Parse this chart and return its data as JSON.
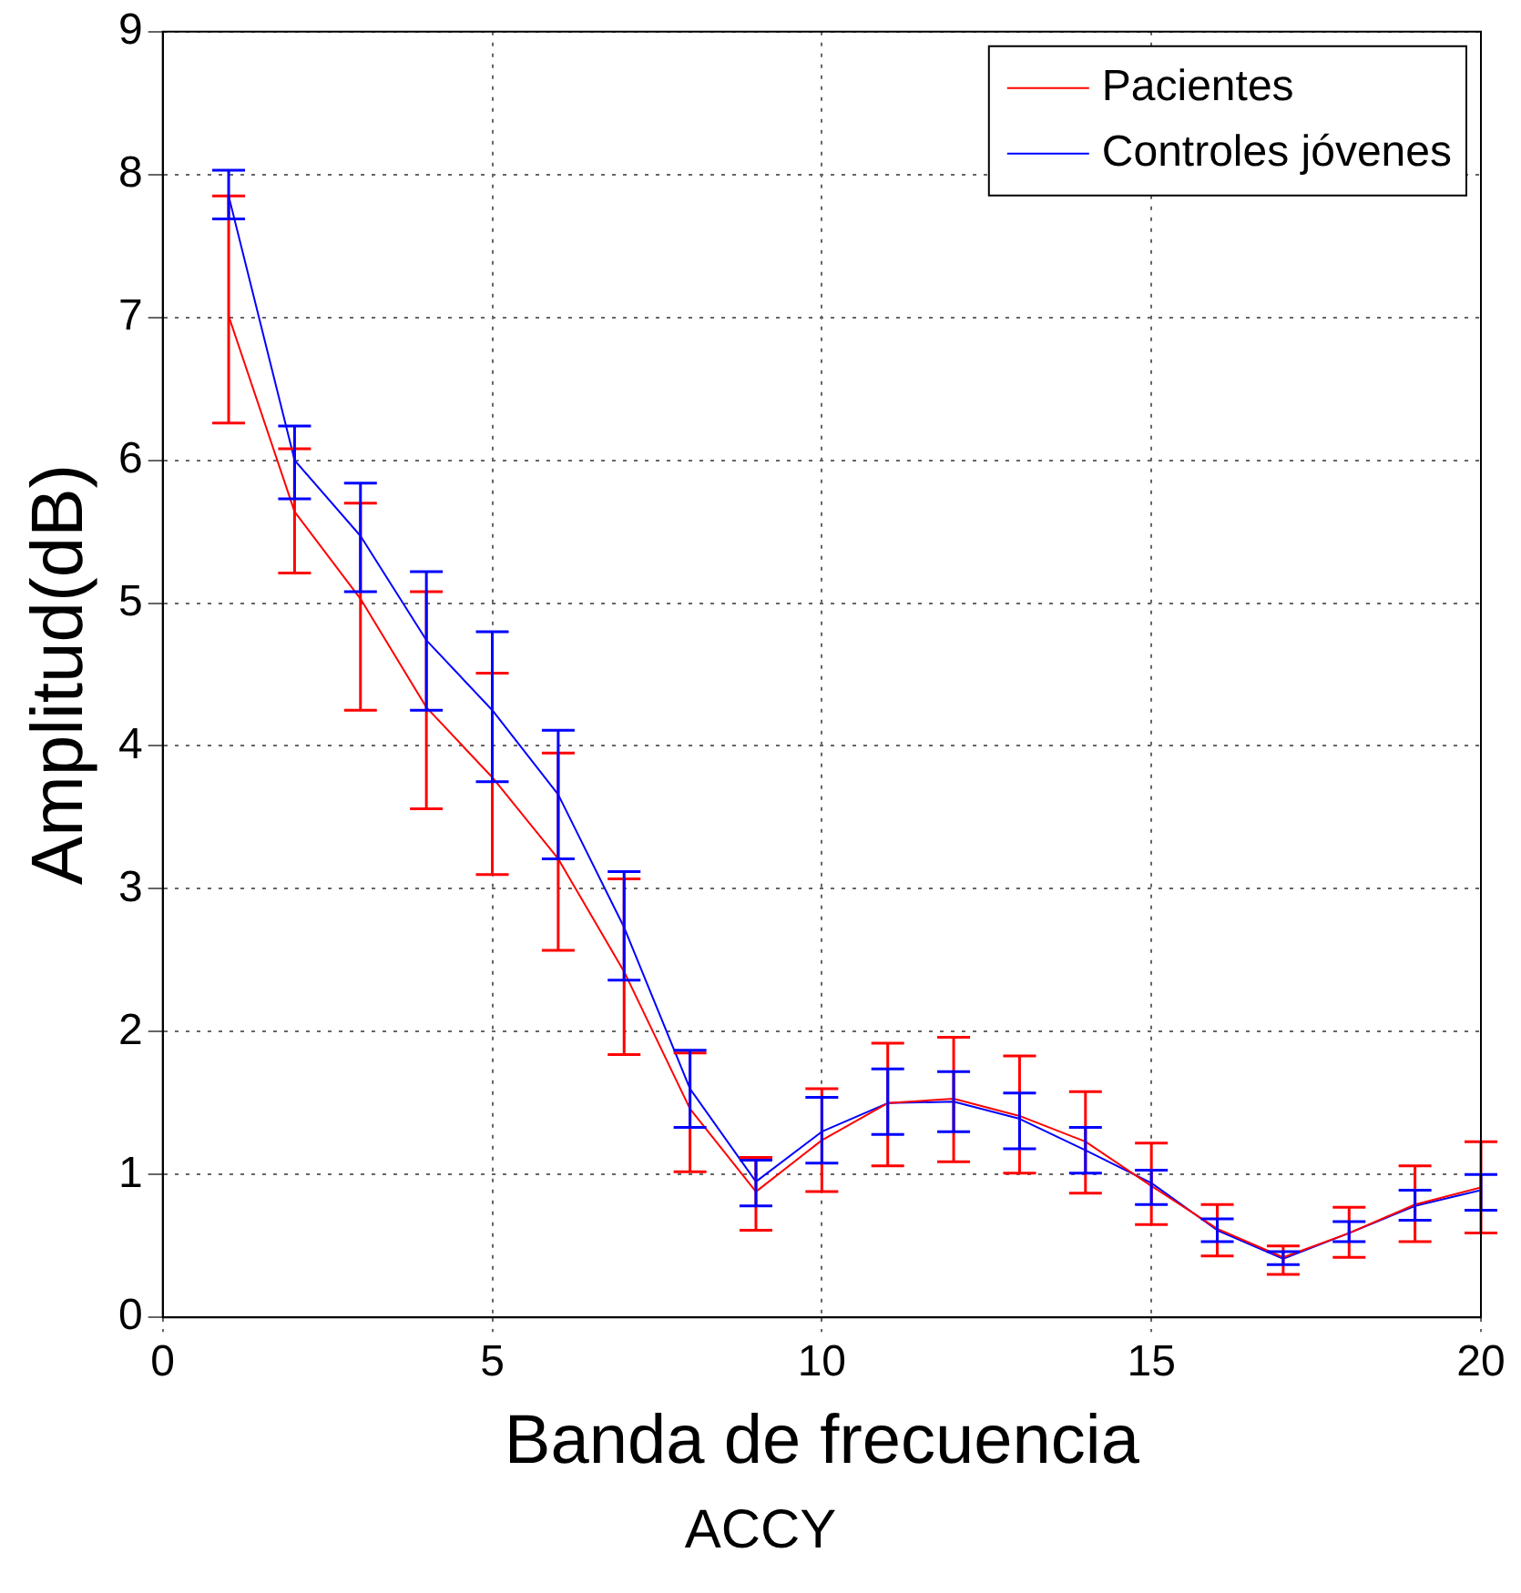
{
  "chart_data": {
    "type": "line",
    "xlabel": "Banda de frecuencia",
    "ylabel": "Amplitud(dB)",
    "annotations": [
      "ACCY"
    ],
    "x": [
      1,
      2,
      3,
      4,
      5,
      6,
      7,
      8,
      9,
      10,
      11,
      12,
      13,
      14,
      15,
      16,
      17,
      18,
      19,
      20
    ],
    "xlim": [
      0,
      20
    ],
    "xticks": [
      0,
      5,
      10,
      15,
      20
    ],
    "ylim": [
      0,
      9
    ],
    "yticks": [
      0,
      1,
      2,
      3,
      4,
      5,
      6,
      7,
      8,
      9
    ],
    "grid": true,
    "legend": "top right",
    "marker": "none",
    "line_style": "solid",
    "series": [
      {
        "name": "Pacientes",
        "color": "#ff0000",
        "values": [
          7.01,
          5.64,
          5.03,
          4.27,
          3.78,
          3.21,
          2.42,
          1.46,
          0.88,
          1.24,
          1.5,
          1.53,
          1.41,
          1.23,
          0.92,
          0.62,
          0.42,
          0.59,
          0.79,
          0.91
        ],
        "errors": [
          [
            6.26,
            7.85
          ],
          [
            5.21,
            6.08
          ],
          [
            4.25,
            5.7
          ],
          [
            3.56,
            5.08
          ],
          [
            3.1,
            4.51
          ],
          [
            2.57,
            3.95
          ],
          [
            1.84,
            3.07
          ],
          [
            1.02,
            1.85
          ],
          [
            0.61,
            1.12
          ],
          [
            0.88,
            1.6
          ],
          [
            1.06,
            1.92
          ],
          [
            1.09,
            1.96
          ],
          [
            1.01,
            1.83
          ],
          [
            0.87,
            1.58
          ],
          [
            0.65,
            1.22
          ],
          [
            0.43,
            0.79
          ],
          [
            0.3,
            0.5
          ],
          [
            0.42,
            0.77
          ],
          [
            0.53,
            1.06
          ],
          [
            0.59,
            1.23
          ]
        ]
      },
      {
        "name": "Controles jóvenes",
        "color": "#0000ff",
        "values": [
          7.85,
          6.0,
          5.47,
          4.74,
          4.25,
          3.66,
          2.73,
          1.6,
          0.95,
          1.3,
          1.5,
          1.51,
          1.39,
          1.17,
          0.94,
          0.61,
          0.41,
          0.59,
          0.78,
          0.89
        ],
        "errors": [
          [
            7.69,
            8.03
          ],
          [
            5.73,
            6.24
          ],
          [
            5.08,
            5.84
          ],
          [
            4.25,
            5.22
          ],
          [
            3.75,
            4.8
          ],
          [
            3.21,
            4.11
          ],
          [
            2.36,
            3.12
          ],
          [
            1.33,
            1.87
          ],
          [
            0.78,
            1.1
          ],
          [
            1.08,
            1.54
          ],
          [
            1.28,
            1.74
          ],
          [
            1.3,
            1.72
          ],
          [
            1.18,
            1.57
          ],
          [
            1.01,
            1.33
          ],
          [
            0.79,
            1.03
          ],
          [
            0.53,
            0.69
          ],
          [
            0.37,
            0.46
          ],
          [
            0.53,
            0.67
          ],
          [
            0.68,
            0.89
          ],
          [
            0.75,
            1.0
          ]
        ]
      }
    ]
  }
}
